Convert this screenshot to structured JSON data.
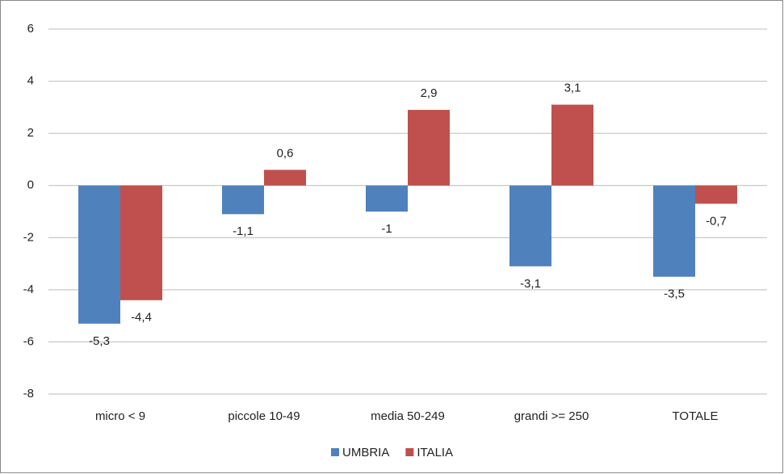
{
  "chart_data": {
    "type": "bar",
    "categories": [
      "micro < 9",
      "piccole 10-49",
      "media 50-249",
      "grandi >= 250",
      "TOTALE"
    ],
    "series": [
      {
        "name": "UMBRIA",
        "color": "#4f81bd",
        "values": [
          -5.3,
          -1.1,
          -1,
          -3.1,
          -3.5
        ],
        "value_labels": [
          "-5,3",
          "-1,1",
          "-1",
          "-3,1",
          "-3,5"
        ]
      },
      {
        "name": "ITALIA",
        "color": "#c0504d",
        "values": [
          -4.4,
          0.6,
          2.9,
          3.1,
          -0.7
        ],
        "value_labels": [
          "-4,4",
          "0,6",
          "2,9",
          "3,1",
          "-0,7"
        ]
      }
    ],
    "ylim": [
      -8,
      6
    ],
    "yticks": [
      -8,
      -6,
      -4,
      -2,
      0,
      2,
      4,
      6
    ],
    "grid": true,
    "legend": "bottom"
  }
}
